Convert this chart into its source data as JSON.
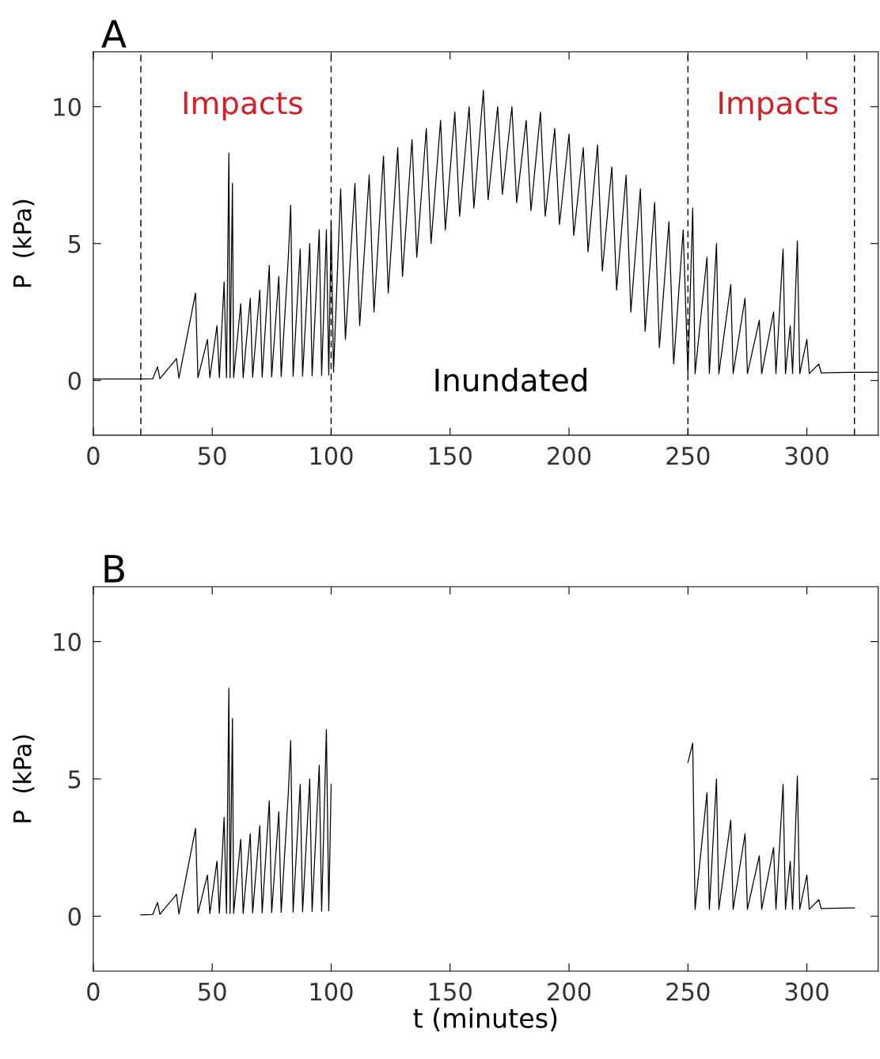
{
  "chart_data": [
    {
      "type": "line",
      "title": "A",
      "ylabel": "P  (kPa)",
      "xlim": [
        0,
        330
      ],
      "ylim": [
        -2,
        12
      ],
      "xticks": [
        0,
        50,
        100,
        150,
        200,
        250,
        300
      ],
      "yticks": [
        0,
        5,
        10
      ],
      "grid": false,
      "legend": false,
      "series": [
        {
          "color": "#000000",
          "x": [
            0,
            10,
            20,
            25,
            27,
            28,
            35,
            36,
            43,
            44,
            48,
            49,
            52,
            53,
            55,
            56,
            57,
            57.5,
            58.5,
            59,
            62,
            63,
            66,
            67,
            70,
            71,
            74,
            75,
            78,
            79,
            82,
            83,
            84,
            87,
            88,
            91,
            92,
            95,
            96,
            98,
            99,
            100,
            101,
            104,
            106,
            110,
            112,
            116,
            118,
            122,
            124,
            128,
            130,
            134,
            136,
            140,
            142,
            146,
            148,
            152,
            154,
            158,
            160,
            164,
            166,
            170,
            172,
            176,
            178,
            182,
            184,
            188,
            190,
            194,
            196,
            200,
            202,
            206,
            208,
            212,
            214,
            218,
            220,
            224,
            226,
            230,
            232,
            236,
            238,
            242,
            244,
            248,
            250,
            252,
            253,
            258,
            259,
            262,
            263,
            268,
            269,
            274,
            275,
            280,
            281,
            286,
            287,
            290,
            291,
            293,
            294,
            296,
            297,
            300,
            301,
            305,
            306,
            318,
            320,
            330
          ],
          "values": [
            0.05,
            0.05,
            0.05,
            0.06,
            0.5,
            0.07,
            0.8,
            0.08,
            3.2,
            0.1,
            1.5,
            0.1,
            2.0,
            0.1,
            3.6,
            0.1,
            8.3,
            0.1,
            7.2,
            0.1,
            2.8,
            0.1,
            3.0,
            0.12,
            3.3,
            0.12,
            4.2,
            0.13,
            3.8,
            0.14,
            4.5,
            6.4,
            0.15,
            4.8,
            0.16,
            5.0,
            0.17,
            5.5,
            0.18,
            5.5,
            0.2,
            5.8,
            0.3,
            7.0,
            1.5,
            7.2,
            2.0,
            7.5,
            2.5,
            8.2,
            3.2,
            8.5,
            3.8,
            8.8,
            4.5,
            9.2,
            5.0,
            9.5,
            5.5,
            9.8,
            6.0,
            10.0,
            6.3,
            10.6,
            6.6,
            10.0,
            6.8,
            10.0,
            6.5,
            9.5,
            6.2,
            9.8,
            6.0,
            9.2,
            5.7,
            9.0,
            5.3,
            8.5,
            4.7,
            8.6,
            4.0,
            7.8,
            3.3,
            7.5,
            2.5,
            7.0,
            1.8,
            6.5,
            1.2,
            5.8,
            0.6,
            5.5,
            0.25,
            6.3,
            0.25,
            4.5,
            0.25,
            5.0,
            0.25,
            3.5,
            0.25,
            3.0,
            0.25,
            2.2,
            0.25,
            2.5,
            0.25,
            4.8,
            0.25,
            2.0,
            0.25,
            5.1,
            0.25,
            1.5,
            0.25,
            0.6,
            0.28,
            0.3,
            0.3,
            0.3
          ]
        }
      ],
      "ref_lines": [
        {
          "axis": "x",
          "value": 20,
          "color": "#000000",
          "line_style": "dashed"
        },
        {
          "axis": "x",
          "value": 100,
          "color": "#000000",
          "line_style": "dashed"
        },
        {
          "axis": "x",
          "value": 250,
          "color": "#000000",
          "line_style": "dashed"
        },
        {
          "axis": "x",
          "value": 320,
          "color": "#000000",
          "line_style": "dashed"
        }
      ],
      "annotations": [
        "Impacts",
        "Impacts",
        "Inundated"
      ]
    },
    {
      "type": "line",
      "title": "B",
      "xlabel": "t (minutes)",
      "ylabel": "P  (kPa)",
      "xlim": [
        0,
        330
      ],
      "ylim": [
        -2,
        12
      ],
      "xticks": [
        0,
        50,
        100,
        150,
        200,
        250,
        300
      ],
      "yticks": [
        0,
        5,
        10
      ],
      "grid": false,
      "legend": false,
      "series": [
        {
          "color": "#000000",
          "x": [
            20,
            25,
            27,
            28,
            35,
            36,
            43,
            44,
            48,
            49,
            52,
            53,
            55,
            56,
            57,
            57.5,
            58.5,
            59,
            62,
            63,
            66,
            67,
            70,
            71,
            74,
            75,
            78,
            79,
            82,
            83,
            84,
            87,
            88,
            91,
            92,
            95,
            96,
            98,
            99,
            100,
            175,
            250,
            252,
            253,
            258,
            259,
            262,
            263,
            268,
            269,
            274,
            275,
            280,
            281,
            286,
            287,
            290,
            291,
            293,
            294,
            296,
            297,
            300,
            301,
            305,
            306,
            318,
            320
          ],
          "values": [
            0.05,
            0.06,
            0.5,
            0.07,
            0.8,
            0.08,
            3.2,
            0.1,
            1.5,
            0.1,
            2.0,
            0.1,
            3.6,
            0.1,
            8.3,
            0.1,
            7.2,
            0.1,
            2.8,
            0.1,
            3.0,
            0.12,
            3.3,
            0.12,
            4.2,
            0.13,
            3.8,
            0.14,
            4.5,
            6.4,
            0.15,
            4.8,
            0.16,
            5.0,
            0.17,
            5.5,
            0.18,
            6.8,
            0.2,
            4.8,
            null,
            5.6,
            6.3,
            0.25,
            4.5,
            0.25,
            5.0,
            0.25,
            3.5,
            0.25,
            3.0,
            0.25,
            2.2,
            0.25,
            2.5,
            0.25,
            4.8,
            0.25,
            2.0,
            0.25,
            5.1,
            0.25,
            1.5,
            0.25,
            0.6,
            0.28,
            0.3,
            0.3
          ]
        }
      ]
    }
  ]
}
